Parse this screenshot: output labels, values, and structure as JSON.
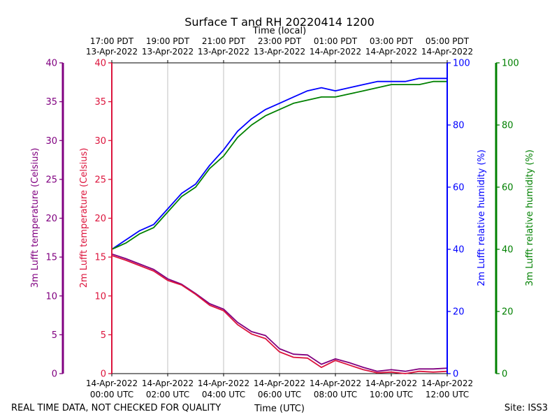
{
  "chart_data": {
    "type": "line",
    "title": "Surface T and RH 20220414 1200",
    "top_axis_title": "Time (local)",
    "xlabel": "Time (UTC)",
    "footer_left": "REAL TIME DATA, NOT CHECKED FOR QUALITY",
    "footer_right": "Site: ISS3",
    "x_range_hours": [
      0,
      12
    ],
    "x_ticks": [
      0,
      2,
      4,
      6,
      8,
      10,
      12
    ],
    "bottom_tick_labels": [
      {
        "date": "14-Apr-2022",
        "time": "00:00 UTC"
      },
      {
        "date": "14-Apr-2022",
        "time": "02:00 UTC"
      },
      {
        "date": "14-Apr-2022",
        "time": "04:00 UTC"
      },
      {
        "date": "14-Apr-2022",
        "time": "06:00 UTC"
      },
      {
        "date": "14-Apr-2022",
        "time": "08:00 UTC"
      },
      {
        "date": "14-Apr-2022",
        "time": "10:00 UTC"
      },
      {
        "date": "14-Apr-2022",
        "time": "12:00 UTC"
      }
    ],
    "top_tick_labels": [
      {
        "time": "17:00 PDT",
        "date": "13-Apr-2022"
      },
      {
        "time": "19:00 PDT",
        "date": "13-Apr-2022"
      },
      {
        "time": "21:00 PDT",
        "date": "13-Apr-2022"
      },
      {
        "time": "23:00 PDT",
        "date": "13-Apr-2022"
      },
      {
        "time": "01:00 PDT",
        "date": "14-Apr-2022"
      },
      {
        "time": "03:00 PDT",
        "date": "14-Apr-2022"
      },
      {
        "time": "05:00 PDT",
        "date": "14-Apr-2022"
      }
    ],
    "axes": {
      "temp_3m": {
        "label": "3m Lufft temperature (Celsius)",
        "ylim": [
          0,
          40
        ],
        "ticks": [
          0,
          5,
          10,
          15,
          20,
          25,
          30,
          35,
          40
        ],
        "color": "#800080"
      },
      "temp_2m": {
        "label": "2m Lufft temperature (Celsius)",
        "ylim": [
          0,
          40
        ],
        "ticks": [
          0,
          5,
          10,
          15,
          20,
          25,
          30,
          35,
          40
        ],
        "color": "#dc143c"
      },
      "rh_2m": {
        "label": "2m Lufft relative humidity (%)",
        "ylim": [
          0,
          100
        ],
        "ticks": [
          0,
          20,
          40,
          60,
          80,
          100
        ],
        "color": "#0000ff"
      },
      "rh_3m": {
        "label": "3m Lufft relative humidity (%)",
        "ylim": [
          0,
          100
        ],
        "ticks": [
          0,
          20,
          40,
          60,
          80,
          100
        ],
        "color": "#008000"
      }
    },
    "series": [
      {
        "name": "3m Lufft temperature",
        "axis": "temp_3m",
        "color": "#800080",
        "x": [
          0,
          0.5,
          1,
          1.5,
          2,
          2.5,
          3,
          3.5,
          4,
          4.5,
          5,
          5.5,
          6,
          6.5,
          7,
          7.5,
          8,
          8.5,
          9,
          9.5,
          10,
          10.5,
          11,
          11.5,
          12
        ],
        "values": [
          15.4,
          14.8,
          14.1,
          13.4,
          12.2,
          11.5,
          10.3,
          9.0,
          8.3,
          6.6,
          5.4,
          4.9,
          3.2,
          2.5,
          2.4,
          1.2,
          1.9,
          1.4,
          0.8,
          0.3,
          0.5,
          0.3,
          0.6,
          0.6,
          0.7
        ]
      },
      {
        "name": "2m Lufft temperature",
        "axis": "temp_2m",
        "color": "#dc143c",
        "x": [
          0,
          0.5,
          1,
          1.5,
          2,
          2.5,
          3,
          3.5,
          4,
          4.5,
          5,
          5.5,
          6,
          6.5,
          7,
          7.5,
          8,
          8.5,
          9,
          9.5,
          10,
          10.5,
          11,
          11.5,
          12
        ],
        "values": [
          15.2,
          14.6,
          13.9,
          13.2,
          12.0,
          11.4,
          10.2,
          8.8,
          8.1,
          6.3,
          5.1,
          4.5,
          2.8,
          2.1,
          2.0,
          0.8,
          1.7,
          1.1,
          0.5,
          0.1,
          0.2,
          0.0,
          0.3,
          0.2,
          0.3
        ]
      },
      {
        "name": "2m Lufft relative humidity",
        "axis": "rh_2m",
        "color": "#0000ff",
        "x": [
          0,
          0.5,
          1,
          1.5,
          2,
          2.5,
          3,
          3.5,
          4,
          4.5,
          5,
          5.5,
          6,
          6.5,
          7,
          7.5,
          8,
          8.5,
          9,
          9.5,
          10,
          10.5,
          11,
          11.5,
          12
        ],
        "values": [
          40,
          43,
          46,
          48,
          53,
          58,
          61,
          67,
          72,
          78,
          82,
          85,
          87,
          89,
          91,
          92,
          91,
          92,
          93,
          94,
          94,
          94,
          95,
          95,
          95
        ]
      },
      {
        "name": "3m Lufft relative humidity",
        "axis": "rh_3m",
        "color": "#008000",
        "x": [
          0,
          0.5,
          1,
          1.5,
          2,
          2.5,
          3,
          3.5,
          4,
          4.5,
          5,
          5.5,
          6,
          6.5,
          7,
          7.5,
          8,
          8.5,
          9,
          9.5,
          10,
          10.5,
          11,
          11.5,
          12
        ],
        "values": [
          40,
          42,
          45,
          47,
          52,
          57,
          60,
          66,
          70,
          76,
          80,
          83,
          85,
          87,
          88,
          89,
          89,
          90,
          91,
          92,
          93,
          93,
          93,
          94,
          94
        ]
      }
    ]
  }
}
